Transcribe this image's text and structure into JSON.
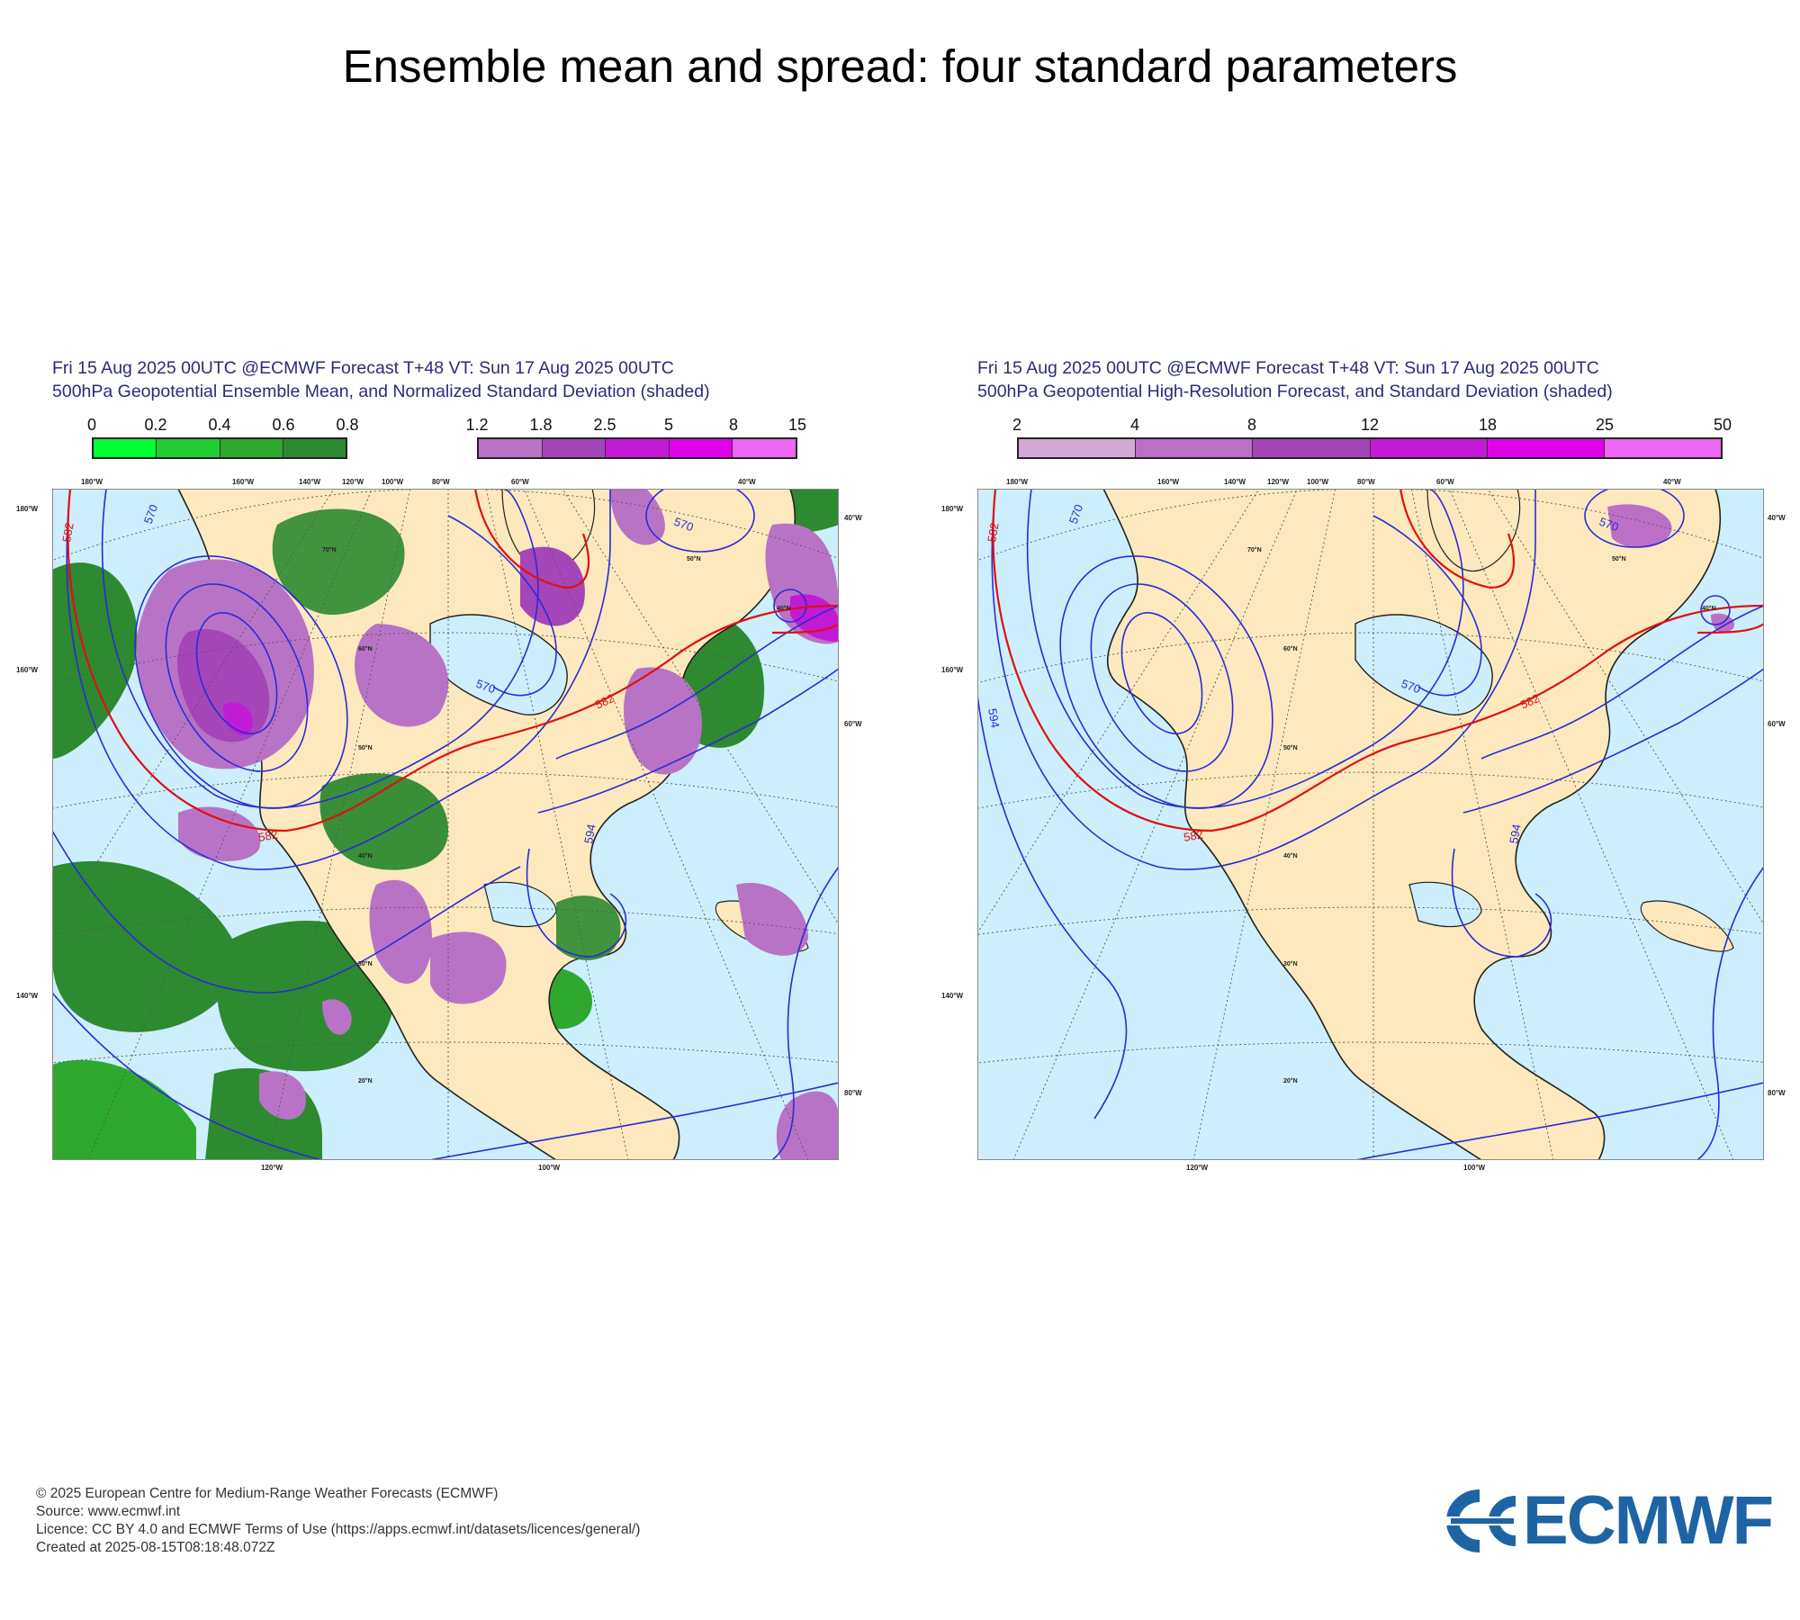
{
  "page": {
    "title": "Ensemble mean and spread: four standard parameters"
  },
  "panels": [
    {
      "id": "left",
      "header_line1": "Fri 15 Aug 2025 00UTC @ECMWF Forecast T+48 VT: Sun 17 Aug 2025 00UTC",
      "header_line2": "500hPa Geopotential Ensemble Mean, and Normalized Standard Deviation (shaded)",
      "colorbar_green": {
        "ticks": [
          "0",
          "0.2",
          "0.4",
          "0.6",
          "0.8"
        ],
        "colors": [
          "#00ff33",
          "#22cc33",
          "#2ea82e",
          "#2d8a30"
        ]
      },
      "colorbar_purple": {
        "ticks": [
          "1.2",
          "1.8",
          "2.5",
          "5",
          "8",
          "15"
        ],
        "colors": [
          "#b873c6",
          "#a445b8",
          "#c21bd6",
          "#e200ea",
          "#ee66f4"
        ]
      },
      "contour_labels": [
        "570",
        "582",
        "594"
      ],
      "lat_labels": [
        "70°N",
        "60°N",
        "50°N",
        "40°N",
        "30°N",
        "20°N",
        "40°N",
        "50°N"
      ],
      "lon_labels_top": [
        "180°W",
        "160°W",
        "140°W",
        "120°W",
        "100°W",
        "80°W",
        "60°W",
        "40°W"
      ],
      "lon_labels_left": [
        "180°W",
        "160°W",
        "140°W"
      ],
      "lon_labels_right": [
        "40°W",
        "60°W",
        "80°W"
      ],
      "lon_labels_bottom": [
        "120°W",
        "100°W"
      ]
    },
    {
      "id": "right",
      "header_line1": "Fri 15 Aug 2025 00UTC @ECMWF Forecast T+48 VT: Sun 17 Aug 2025 00UTC",
      "header_line2": "500hPa Geopotential High-Resolution Forecast, and Standard Deviation (shaded)",
      "colorbar": {
        "ticks": [
          "2",
          "4",
          "8",
          "12",
          "18",
          "25",
          "50"
        ],
        "colors": [
          "#d2a8d6",
          "#bb6fc6",
          "#a445b8",
          "#c21bd6",
          "#e200ea",
          "#ee66f4"
        ]
      },
      "contour_labels": [
        "570",
        "582",
        "594"
      ],
      "lat_labels": [
        "70°N",
        "60°N",
        "50°N",
        "40°N",
        "30°N",
        "20°N",
        "50°N",
        "40°N"
      ],
      "lon_labels_top": [
        "180°W",
        "160°W",
        "140°W",
        "120°W",
        "100°W",
        "80°W",
        "60°W",
        "40°W"
      ],
      "lon_labels_left": [
        "180°W",
        "160°W",
        "140°W"
      ],
      "lon_labels_right": [
        "40°W",
        "60°W",
        "80°W"
      ],
      "lon_labels_bottom": [
        "120°W",
        "100°W"
      ]
    }
  ],
  "map_colors": {
    "ocean": "#cdeefc",
    "land": "#fde9bd",
    "coast": "#222222",
    "contour_blue": "#2b2bd6",
    "contour_red": "#e01010"
  },
  "footer": {
    "line1": "© 2025 European Centre for Medium-Range Weather Forecasts (ECMWF)",
    "line2": "Source: www.ecmwf.int",
    "line3": "Licence: CC BY 4.0 and ECMWF Terms of Use (https://apps.ecmwf.int/datasets/licences/general/)",
    "line4": "Created at 2025-08-15T08:18:48.072Z"
  },
  "logo": {
    "text": "ECMWF",
    "color": "#1e64a5"
  }
}
